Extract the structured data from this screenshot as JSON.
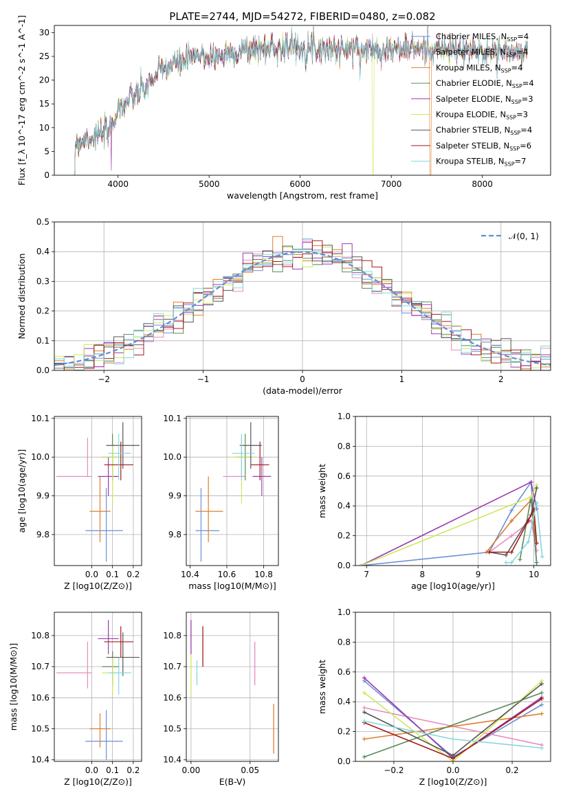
{
  "title": "PLATE=2744, MJD=54272, FIBERID=0480, z=0.082",
  "colors": {
    "chabrier_miles": "#6a8fd8",
    "salpeter_miles": "#e88bbd",
    "kroupa_miles": "#e07c2a",
    "chabrier_elodie": "#5a8a5a",
    "salpeter_elodie": "#9b3bb0",
    "kroupa_elodie": "#cde85a",
    "chabrier_stelib": "#555555",
    "salpeter_stelib": "#a51a1a",
    "kroupa_stelib": "#86d6dc",
    "gaussian": "#5b8fd6"
  },
  "chart_data": [
    {
      "id": "spectrum",
      "type": "line",
      "xlabel": "wavelength [Angstrom, rest frame]",
      "ylabel": "Flux [f_λ 10^-17 erg cm^-2 s^-1 A^-1]",
      "xlim": [
        3300,
        8750
      ],
      "ylim": [
        0,
        31.5
      ],
      "xticks": [
        "4000",
        "5000",
        "6000",
        "7000",
        "8000"
      ],
      "yticks": [
        "0",
        "5",
        "10",
        "15",
        "20",
        "25",
        "30"
      ],
      "grid": false,
      "legend_position": "right",
      "legend": [
        "Chabrier MILES, N_SSP=4",
        "Salpeter MILES, N_SSP=4",
        "Kroupa MILES, N_SSP=4",
        "Chabrier ELODIE, N_SSP=4",
        "Salpeter ELODIE, N_SSP=3",
        "Kroupa ELODIE, N_SSP=3",
        "Chabrier STELIB, N_SSP=4",
        "Salpeter STELIB, N_SSP=6",
        "Kroupa STELIB, N_SSP=7"
      ],
      "continuum": {
        "x": [
          3500,
          3700,
          3900,
          4000,
          4150,
          4300,
          4500,
          4700,
          4900,
          5100,
          5300,
          5500,
          5800,
          6100,
          6400,
          6700,
          7000,
          7300,
          7600,
          7900,
          8200,
          8500
        ],
        "y": [
          6.5,
          8,
          9,
          14,
          16,
          18.5,
          22.5,
          24,
          25,
          25,
          26,
          26.5,
          27,
          27,
          26.5,
          26.5,
          26.5,
          26.5,
          26.5,
          26,
          26,
          25.5
        ]
      }
    },
    {
      "id": "residuals",
      "type": "histogram",
      "xlabel": "(data-model)/error",
      "ylabel": "Normed distribution",
      "xlim": [
        -2.5,
        2.5
      ],
      "ylim": [
        0,
        0.5
      ],
      "xticks": [
        "−2",
        "−1",
        "0",
        "1",
        "2"
      ],
      "yticks": [
        "0.0",
        "0.1",
        "0.2",
        "0.3",
        "0.4",
        "0.5"
      ],
      "grid": true,
      "bin_width": 0.1,
      "legend": "𝒩(0, 1)",
      "legend_position": "top-right"
    },
    {
      "id": "age_vs_Z",
      "type": "errorbar",
      "xlabel": "Z [log10(Z/Z⊙)]",
      "ylabel": "age [log10(age/yr)]",
      "xlim": [
        -0.18,
        0.24
      ],
      "ylim": [
        9.72,
        10.105
      ],
      "xticks": [
        "0.0",
        "0.1",
        "0.2"
      ],
      "yticks": [
        "9.8",
        "9.9",
        "10.0",
        "10.1"
      ],
      "grid": true
    },
    {
      "id": "age_vs_mass",
      "type": "errorbar",
      "xlabel": "mass [log10(M/M⊙)]",
      "xlim": [
        10.38,
        10.88
      ],
      "ylim": [
        9.72,
        10.105
      ],
      "xticks": [
        "10.4",
        "10.6",
        "10.8"
      ],
      "yticks": [
        "9.8",
        "9.9",
        "10.0",
        "10.1"
      ],
      "grid": true
    },
    {
      "id": "weight_vs_age",
      "type": "line",
      "xlabel": "age [log10(age/yr)]",
      "ylabel": "mass weight",
      "xlim": [
        6.8,
        10.3
      ],
      "ylim": [
        0,
        1
      ],
      "xticks": [
        "7",
        "8",
        "9",
        "10"
      ],
      "yticks": [
        "0.0",
        "0.2",
        "0.4",
        "0.6",
        "0.8",
        "1.0"
      ],
      "grid": true
    },
    {
      "id": "mass_vs_Z",
      "type": "errorbar",
      "xlabel": "Z [log10(Z/Z⊙)]",
      "ylabel": "mass [log10(M/M⊙)]",
      "xlim": [
        -0.18,
        0.24
      ],
      "ylim": [
        10.395,
        10.875
      ],
      "xticks": [
        "0.0",
        "0.1",
        "0.2"
      ],
      "yticks": [
        "10.4",
        "10.5",
        "10.6",
        "10.7",
        "10.8"
      ],
      "grid": true
    },
    {
      "id": "mass_vs_ebv",
      "type": "errorbar",
      "xlabel": "E(B-V)",
      "xlim": [
        -0.004,
        0.074
      ],
      "ylim": [
        10.395,
        10.875
      ],
      "xticks": [
        "0.00",
        "0.05"
      ],
      "yticks": [
        "10.4",
        "10.5",
        "10.6",
        "10.7",
        "10.8"
      ],
      "grid": true
    },
    {
      "id": "weight_vs_Z",
      "type": "line",
      "xlabel": "Z [log10(Z/Z⊙)]",
      "ylabel": "mass weight",
      "xlim": [
        -0.33,
        0.33
      ],
      "ylim": [
        0,
        1
      ],
      "xticks": [
        "−0.2",
        "0.0",
        "0.2"
      ],
      "yticks": [
        "0.0",
        "0.2",
        "0.4",
        "0.6",
        "0.8",
        "1.0"
      ],
      "grid": true
    }
  ],
  "models": [
    {
      "key": "chabrier_miles",
      "age": 9.81,
      "age_lo": 0.08,
      "age_hi": 0.11,
      "Z": 0.07,
      "Z_lo": 0.1,
      "Z_hi": 0.08,
      "mass": 10.46,
      "mass_lo": 0.03,
      "mass_hi": 0.1,
      "mass_err_lo": 0.06,
      "mass_err_hi": 0.1,
      "ebv": null,
      "sfh_age": [
        6.9,
        9.2,
        9.6,
        9.95,
        10.05
      ],
      "sfh_w": [
        0.0,
        0.09,
        0.37,
        0.56,
        0.0
      ],
      "zw_Z": [
        -0.3,
        0.0,
        0.3
      ],
      "zw_w": [
        0.54,
        0.03,
        0.38
      ]
    },
    {
      "key": "salpeter_miles",
      "age": 9.95,
      "age_lo": 0.0,
      "age_hi": 0.1,
      "Z": -0.02,
      "Z_lo": 0.15,
      "Z_hi": 0.02,
      "mass": 10.68,
      "mass_lo": 0.1,
      "mass_hi": 0.02,
      "mass_err_lo": 0.05,
      "mass_err_hi": 0.1,
      "ebv": 0.054,
      "ebv_lo": 10.64,
      "ebv_hi": 10.78,
      "sfh_age": [
        9.2,
        9.6,
        9.95,
        10.05
      ],
      "sfh_w": [
        0.09,
        0.2,
        0.3,
        0.1
      ],
      "zw_Z": [
        -0.3,
        0.3
      ],
      "zw_w": [
        0.36,
        0.11
      ]
    },
    {
      "key": "kroupa_miles",
      "age": 9.86,
      "age_lo": 0.08,
      "age_hi": 0.09,
      "Z": 0.04,
      "Z_lo": 0.05,
      "Z_hi": 0.05,
      "mass": 10.5,
      "mass_lo": 0.07,
      "mass_hi": 0.08,
      "mass_err_lo": 0.06,
      "mass_err_hi": 0.05,
      "ebv": 0.07,
      "ebv_lo": 10.42,
      "ebv_hi": 10.58,
      "sfh_age": [
        9.15,
        9.6,
        9.95,
        10.05
      ],
      "sfh_w": [
        0.09,
        0.3,
        0.44,
        0.15
      ],
      "zw_Z": [
        -0.3,
        0.3
      ],
      "zw_w": [
        0.15,
        0.32
      ]
    },
    {
      "key": "chabrier_elodie",
      "age": 10.0,
      "age_lo": 0.06,
      "age_hi": 0.06,
      "Z": 0.1,
      "Z_lo": 0.05,
      "Z_hi": 0.03,
      "mass": 10.7,
      "mass_lo": 0.05,
      "mass_hi": 0.04,
      "mass_err_lo": 0.06,
      "mass_err_hi": 0.05,
      "ebv": null,
      "sfh_age": [
        9.75,
        9.95,
        10.05
      ],
      "sfh_w": [
        0.04,
        0.46,
        0.02
      ],
      "zw_Z": [
        -0.3,
        0.3
      ],
      "zw_w": [
        0.03,
        0.46
      ]
    },
    {
      "key": "salpeter_elodie",
      "age": 9.95,
      "age_lo": 0.05,
      "age_hi": 0.05,
      "Z": 0.08,
      "Z_lo": 0.05,
      "Z_hi": 0.05,
      "mass": 10.79,
      "mass_lo": 0.05,
      "mass_hi": 0.05,
      "mass_err_lo": 0.05,
      "mass_err_hi": 0.06,
      "ebv": 0.0,
      "ebv_lo": 10.74,
      "ebv_hi": 10.85,
      "sfh_age": [
        6.9,
        9.95,
        10.05
      ],
      "sfh_w": [
        0.0,
        0.56,
        0.38
      ],
      "zw_Z": [
        -0.3,
        0.0,
        0.3
      ],
      "zw_w": [
        0.56,
        0.02,
        0.43
      ]
    },
    {
      "key": "kroupa_elodie",
      "age": 10.0,
      "age_lo": 0.12,
      "age_hi": 0.03,
      "Z": 0.1,
      "Z_lo": 0.05,
      "Z_hi": 0.03,
      "mass": 10.68,
      "mass_lo": 0.06,
      "mass_hi": 0.06,
      "mass_err_lo": 0.07,
      "mass_err_hi": 0.05,
      "ebv": 0.0,
      "ebv_lo": 10.61,
      "ebv_hi": 10.74,
      "sfh_age": [
        6.9,
        9.95,
        10.05
      ],
      "sfh_w": [
        0.0,
        0.46,
        0.54
      ],
      "zw_Z": [
        -0.3,
        0.0,
        0.3
      ],
      "zw_w": [
        0.46,
        0.0,
        0.54
      ]
    },
    {
      "key": "chabrier_stelib",
      "age": 10.03,
      "age_lo": 0.06,
      "age_hi": 0.06,
      "Z": 0.15,
      "Z_lo": 0.08,
      "Z_hi": 0.08,
      "mass": 10.73,
      "mass_lo": 0.06,
      "mass_hi": 0.06,
      "mass_err_lo": 0.06,
      "mass_err_hi": 0.08,
      "ebv": null,
      "sfh_age": [
        9.2,
        9.5,
        9.95,
        10.05
      ],
      "sfh_w": [
        0.09,
        0.07,
        0.34,
        0.52
      ],
      "zw_Z": [
        -0.3,
        0.0,
        0.3
      ],
      "zw_w": [
        0.33,
        0.04,
        0.52
      ]
    },
    {
      "key": "salpeter_stelib",
      "age": 9.98,
      "age_lo": 0.04,
      "age_hi": 0.06,
      "Z": 0.14,
      "Z_lo": 0.08,
      "Z_hi": 0.06,
      "mass": 10.78,
      "mass_lo": 0.05,
      "mass_hi": 0.05,
      "mass_err_lo": 0.05,
      "mass_err_hi": 0.05,
      "ebv": 0.01,
      "ebv_lo": 10.7,
      "ebv_hi": 10.83,
      "sfh_age": [
        9.2,
        9.6,
        9.9,
        10.0,
        10.05
      ],
      "sfh_w": [
        0.09,
        0.09,
        0.3,
        0.38,
        0.15
      ],
      "zw_Z": [
        -0.3,
        0.0,
        0.3
      ],
      "zw_w": [
        0.26,
        0.02,
        0.42
      ]
    },
    {
      "key": "kroupa_stelib",
      "age": 10.01,
      "age_lo": 0.07,
      "age_hi": 0.05,
      "Z": 0.13,
      "Z_lo": 0.05,
      "Z_hi": 0.06,
      "mass": 10.68,
      "mass_lo": 0.05,
      "mass_hi": 0.07,
      "mass_err_lo": 0.07,
      "mass_err_hi": 0.05,
      "ebv": 0.005,
      "ebv_lo": 10.64,
      "ebv_hi": 10.72,
      "sfh_age": [
        9.5,
        9.6,
        9.9,
        10.05,
        10.15
      ],
      "sfh_w": [
        0.02,
        0.02,
        0.16,
        0.42,
        0.06
      ],
      "zw_Z": [
        -0.3,
        0.0,
        0.3
      ],
      "zw_w": [
        0.27,
        0.15,
        0.09
      ]
    }
  ]
}
